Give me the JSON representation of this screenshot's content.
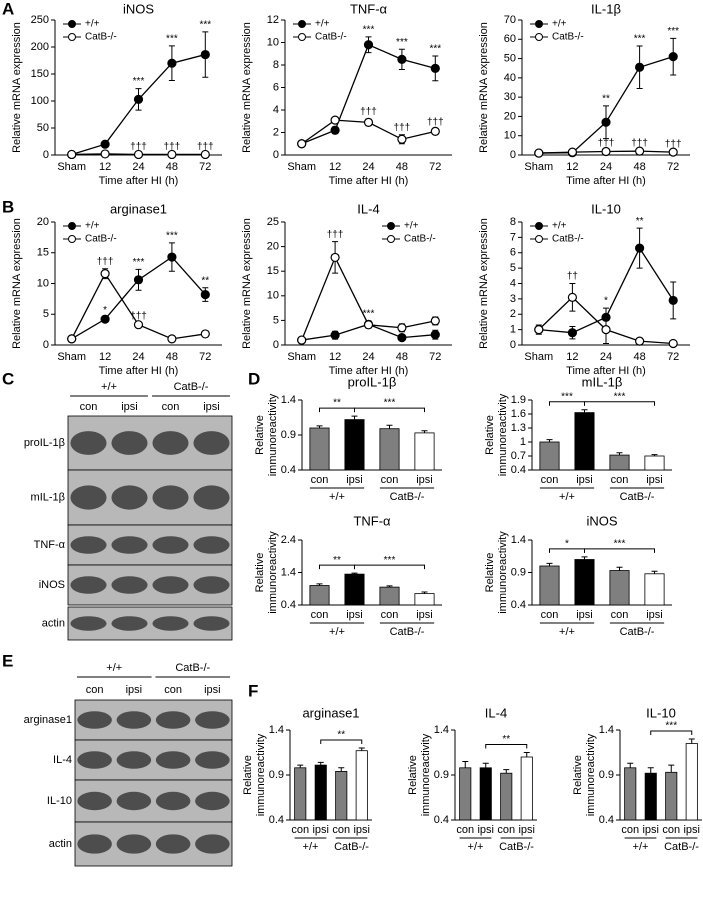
{
  "panel_labels": [
    "A",
    "B",
    "C",
    "D",
    "E",
    "F"
  ],
  "chart_data": [
    {
      "type": "line",
      "title": "iNOS",
      "xlabel": "Time after HI (h)",
      "ylabel": "Relative mRNA expression",
      "legend": "upper left",
      "categories": [
        "Sham",
        "12",
        "24",
        "48",
        "72"
      ],
      "ylim": [
        0,
        250
      ],
      "yticks": [
        0,
        50,
        100,
        150,
        200,
        250
      ],
      "series": [
        {
          "name": "+/+",
          "color": "#000000",
          "values": [
            1,
            20,
            103,
            170,
            186
          ],
          "errors": [
            1,
            5,
            20,
            32,
            42
          ],
          "annotations": [
            null,
            null,
            "***",
            "***",
            "***"
          ]
        },
        {
          "name": "CatB-/-",
          "color": "#ffffff",
          "values": [
            1,
            2,
            1,
            1,
            1
          ],
          "errors": [
            0.5,
            1,
            1,
            1,
            1
          ],
          "annotations": [
            null,
            null,
            "†††",
            "†††",
            "†††"
          ]
        }
      ]
    },
    {
      "type": "line",
      "title": "TNF-α",
      "xlabel": "Time after HI (h)",
      "ylabel": "Relative mRNA expression",
      "legend": "upper left",
      "categories": [
        "Sham",
        "12",
        "24",
        "48",
        "72"
      ],
      "ylim": [
        0,
        12
      ],
      "yticks": [
        0,
        2,
        4,
        6,
        8,
        10,
        12
      ],
      "series": [
        {
          "name": "+/+",
          "color": "#000000",
          "values": [
            1,
            2.2,
            9.8,
            8.5,
            7.7
          ],
          "errors": [
            0.2,
            0.3,
            0.7,
            0.9,
            1.1
          ],
          "annotations": [
            null,
            null,
            "***",
            "***",
            "***"
          ]
        },
        {
          "name": "CatB-/-",
          "color": "#ffffff",
          "values": [
            1,
            3.1,
            2.9,
            1.4,
            2.1
          ],
          "errors": [
            0.2,
            0.2,
            0.3,
            0.4,
            0.2
          ],
          "annotations": [
            null,
            null,
            "†††",
            "†††",
            "†††"
          ]
        }
      ]
    },
    {
      "type": "line",
      "title": "IL-1β",
      "xlabel": "Time after HI (h)",
      "ylabel": "Relative mRNA expression",
      "legend": "upper left",
      "categories": [
        "Sham",
        "12",
        "24",
        "48",
        "72"
      ],
      "ylim": [
        0,
        70
      ],
      "yticks": [
        0,
        10,
        20,
        30,
        40,
        50,
        60,
        70
      ],
      "series": [
        {
          "name": "+/+",
          "color": "#000000",
          "values": [
            1,
            1.2,
            17,
            45.5,
            51
          ],
          "errors": [
            0.3,
            0.5,
            8.5,
            11,
            9.5
          ],
          "annotations": [
            null,
            null,
            "**",
            "***",
            "***"
          ]
        },
        {
          "name": "CatB-/-",
          "color": "#ffffff",
          "values": [
            1,
            1.5,
            1.8,
            2,
            1.5
          ],
          "errors": [
            0.3,
            0.4,
            0.5,
            0.5,
            0.4
          ],
          "annotations": [
            null,
            null,
            "†††",
            "†††",
            "†††"
          ]
        }
      ]
    },
    {
      "type": "line",
      "title": "arginase1",
      "xlabel": "Time after HI (h)",
      "ylabel": "Relative mRNA expression",
      "legend": "upper left",
      "categories": [
        "Sham",
        "12",
        "24",
        "48",
        "72"
      ],
      "ylim": [
        0,
        20
      ],
      "yticks": [
        0,
        5,
        10,
        15,
        20
      ],
      "series": [
        {
          "name": "+/+",
          "color": "#000000",
          "values": [
            1,
            4.2,
            10.6,
            14.3,
            8.2
          ],
          "errors": [
            0.1,
            0.3,
            1.7,
            2.3,
            1.1
          ],
          "annotations": [
            null,
            "*",
            "***",
            "***",
            "**"
          ]
        },
        {
          "name": "CatB-/-",
          "color": "#ffffff",
          "values": [
            1,
            11.6,
            3.3,
            1,
            1.8
          ],
          "errors": [
            0.1,
            0.8,
            0.2,
            0.1,
            0.2
          ],
          "annotations": [
            null,
            "†††",
            "†††",
            null,
            null
          ]
        }
      ]
    },
    {
      "type": "line",
      "title": "IL-4",
      "xlabel": "Time after HI (h)",
      "ylabel": "Relative mRNA expression",
      "legend": "upper right",
      "categories": [
        "Sham",
        "12",
        "24",
        "48",
        "72"
      ],
      "ylim": [
        0,
        25
      ],
      "yticks": [
        0,
        5,
        10,
        15,
        20,
        25
      ],
      "series": [
        {
          "name": "+/+",
          "color": "#000000",
          "values": [
            1,
            2,
            4.2,
            1.5,
            2.1
          ],
          "errors": [
            0.2,
            0.8,
            0.7,
            0.3,
            0.9
          ],
          "annotations": [
            null,
            null,
            "***",
            null,
            null
          ]
        },
        {
          "name": "CatB-/-",
          "color": "#ffffff",
          "values": [
            1,
            17.8,
            4.1,
            3.5,
            4.9
          ],
          "errors": [
            0.2,
            3.2,
            0.6,
            0.8,
            0.8
          ],
          "annotations": [
            null,
            "†††",
            null,
            null,
            null
          ]
        }
      ]
    },
    {
      "type": "line",
      "title": "IL-10",
      "xlabel": "Time after HI (h)",
      "ylabel": "Relative mRNA expression",
      "legend": "upper left",
      "categories": [
        "Sham",
        "12",
        "24",
        "48",
        "72"
      ],
      "ylim": [
        0,
        8
      ],
      "yticks": [
        0,
        1,
        2,
        3,
        4,
        5,
        6,
        7,
        8
      ],
      "series": [
        {
          "name": "+/+",
          "color": "#000000",
          "values": [
            1,
            0.8,
            1.8,
            6.3,
            2.9
          ],
          "errors": [
            0.2,
            0.4,
            0.6,
            1.3,
            1.2
          ],
          "annotations": [
            null,
            null,
            "*",
            "**",
            null
          ]
        },
        {
          "name": "CatB-/-",
          "color": "#ffffff",
          "values": [
            1,
            3.1,
            1,
            0.25,
            0.1
          ],
          "errors": [
            0.3,
            0.9,
            0.9,
            0.1,
            0.05
          ],
          "annotations": [
            null,
            "††",
            null,
            null,
            null
          ]
        }
      ]
    },
    {
      "type": "bar",
      "title": "proIL-1β",
      "ylabel": [
        "Relative",
        "immunoreactivity"
      ],
      "categories": [
        "con",
        "ipsi",
        "con",
        "ipsi"
      ],
      "groups": [
        "+/+",
        "CatB-/-"
      ],
      "colors": [
        "#7f7f7f",
        "#000000",
        "#7f7f7f",
        "#ffffff"
      ],
      "values": [
        1,
        1.12,
        0.99,
        0.93
      ],
      "errors": [
        0.03,
        0.05,
        0.05,
        0.03
      ],
      "ylim": [
        0.4,
        1.4
      ],
      "yticks": [
        0.4,
        0.9,
        1.4
      ],
      "brackets": [
        {
          "from": 0,
          "to": 1,
          "label": "**"
        },
        {
          "from": 1,
          "to": 3,
          "label": "***"
        }
      ]
    },
    {
      "type": "bar",
      "title": "mIL-1β",
      "ylabel": [
        "Relative",
        "immunoreactivity"
      ],
      "categories": [
        "con",
        "ipsi",
        "con",
        "ipsi"
      ],
      "groups": [
        "+/+",
        "CatB-/-"
      ],
      "colors": [
        "#7f7f7f",
        "#000000",
        "#7f7f7f",
        "#ffffff"
      ],
      "values": [
        1,
        1.63,
        0.72,
        0.7
      ],
      "errors": [
        0.05,
        0.06,
        0.05,
        0.03
      ],
      "ylim": [
        0.4,
        1.9
      ],
      "yticks": [
        0.4,
        0.7,
        1,
        1.3,
        1.6,
        1.9
      ],
      "brackets": [
        {
          "from": 0,
          "to": 1,
          "label": "***"
        },
        {
          "from": 1,
          "to": 3,
          "label": "***"
        }
      ]
    },
    {
      "type": "bar",
      "title": "TNF-α",
      "ylabel": [
        "Relative",
        "immunoreactivity"
      ],
      "categories": [
        "con",
        "ipsi",
        "con",
        "ipsi"
      ],
      "groups": [
        "+/+",
        "CatB-/-"
      ],
      "colors": [
        "#7f7f7f",
        "#000000",
        "#7f7f7f",
        "#ffffff"
      ],
      "values": [
        1,
        1.35,
        0.95,
        0.75
      ],
      "errors": [
        0.05,
        0.03,
        0.04,
        0.05
      ],
      "ylim": [
        0.4,
        2.4
      ],
      "yticks": [
        0.4,
        1.4,
        2.4
      ],
      "brackets": [
        {
          "from": 0,
          "to": 1,
          "label": "**"
        },
        {
          "from": 1,
          "to": 3,
          "label": "***"
        }
      ]
    },
    {
      "type": "bar",
      "title": "iNOS",
      "ylabel": [
        "Relative",
        "immunoreactivity"
      ],
      "categories": [
        "con",
        "ipsi",
        "con",
        "ipsi"
      ],
      "groups": [
        "+/+",
        "CatB-/-"
      ],
      "colors": [
        "#7f7f7f",
        "#000000",
        "#7f7f7f",
        "#ffffff"
      ],
      "values": [
        1,
        1.1,
        0.93,
        0.88
      ],
      "errors": [
        0.04,
        0.04,
        0.05,
        0.04
      ],
      "ylim": [
        0.4,
        1.4
      ],
      "yticks": [
        0.4,
        0.9,
        1.4
      ],
      "brackets": [
        {
          "from": 0,
          "to": 1,
          "label": "*"
        },
        {
          "from": 1,
          "to": 3,
          "label": "***"
        }
      ]
    },
    {
      "type": "bar",
      "title": "arginase1",
      "ylabel": [
        "Relative",
        "immunoreactivity"
      ],
      "categories": [
        "con",
        "ipsi",
        "con",
        "ipsi"
      ],
      "groups": [
        "+/+",
        "CatB-/-"
      ],
      "colors": [
        "#7f7f7f",
        "#000000",
        "#7f7f7f",
        "#ffffff"
      ],
      "values": [
        0.98,
        1.01,
        0.94,
        1.17
      ],
      "errors": [
        0.03,
        0.03,
        0.04,
        0.03
      ],
      "ylim": [
        0.4,
        1.4
      ],
      "yticks": [
        0.4,
        0.9,
        1.4
      ],
      "brackets": [
        {
          "from": 1,
          "to": 3,
          "label": "**"
        }
      ]
    },
    {
      "type": "bar",
      "title": "IL-4",
      "ylabel": [
        "Relative",
        "immunoreactivity"
      ],
      "categories": [
        "con",
        "ipsi",
        "con",
        "ipsi"
      ],
      "groups": [
        "+/+",
        "CatB-/-"
      ],
      "colors": [
        "#7f7f7f",
        "#000000",
        "#7f7f7f",
        "#ffffff"
      ],
      "values": [
        0.98,
        0.98,
        0.92,
        1.1
      ],
      "errors": [
        0.07,
        0.05,
        0.04,
        0.05
      ],
      "ylim": [
        0.4,
        1.4
      ],
      "yticks": [
        0.4,
        0.9,
        1.4
      ],
      "brackets": [
        {
          "from": 1,
          "to": 3,
          "label": "**"
        }
      ]
    },
    {
      "type": "bar",
      "title": "IL-10",
      "ylabel": [
        "Relative",
        "immunoreactivity"
      ],
      "categories": [
        "con",
        "ipsi",
        "con",
        "ipsi"
      ],
      "groups": [
        "+/+",
        "CatB-/-"
      ],
      "colors": [
        "#7f7f7f",
        "#000000",
        "#7f7f7f",
        "#ffffff"
      ],
      "values": [
        0.98,
        0.92,
        0.93,
        1.25
      ],
      "errors": [
        0.05,
        0.06,
        0.08,
        0.05
      ],
      "ylim": [
        0.4,
        1.4
      ],
      "yticks": [
        0.4,
        0.9,
        1.4
      ],
      "brackets": [
        {
          "from": 1,
          "to": 3,
          "label": "***"
        }
      ]
    }
  ],
  "blots": [
    {
      "groups": [
        "+/+",
        "CatB-/-"
      ],
      "lanes": [
        "con",
        "ipsi",
        "con",
        "ipsi"
      ],
      "bands": [
        "proIL-1β",
        "mIL-1β",
        "TNF-α",
        "iNOS",
        "actin"
      ]
    },
    {
      "groups": [
        "+/+",
        "CatB-/-"
      ],
      "lanes": [
        "con",
        "ipsi",
        "con",
        "ipsi"
      ],
      "bands": [
        "arginase1",
        "IL-4",
        "IL-10",
        "actin"
      ]
    }
  ]
}
